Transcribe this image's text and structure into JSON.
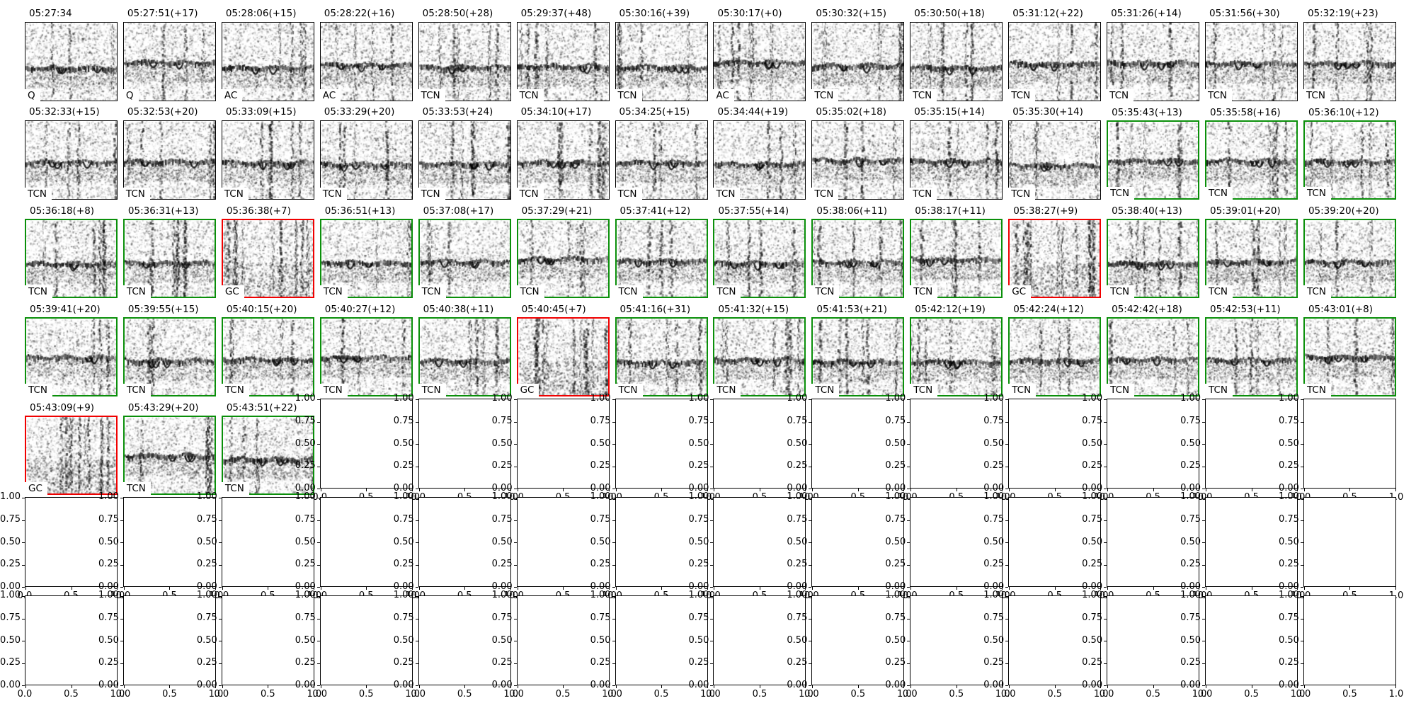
{
  "figure": {
    "background": "#ffffff",
    "border_colors": {
      "black": "#000000",
      "green": "#0a8f0a",
      "red": "#f00000"
    },
    "label_categories": [
      "Q",
      "AC",
      "TCN",
      "GC"
    ]
  },
  "chart_data": {
    "type": "heatmap",
    "title": "",
    "description": "Grid of 59 audio spectrogram panels (time-stamped detections with classifier labels) followed by 39 empty axes",
    "grid": {
      "rows": 7,
      "cols": 14,
      "spectrogram_count": 59,
      "empty_axes_count": 39
    },
    "panels": [
      {
        "title": "05:27:34",
        "label": "Q",
        "border": "black"
      },
      {
        "title": "05:27:51(+17)",
        "label": "Q",
        "border": "black"
      },
      {
        "title": "05:28:06(+15)",
        "label": "AC",
        "border": "black"
      },
      {
        "title": "05:28:22(+16)",
        "label": "AC",
        "border": "black"
      },
      {
        "title": "05:28:50(+28)",
        "label": "TCN",
        "border": "black"
      },
      {
        "title": "05:29:37(+48)",
        "label": "TCN",
        "border": "black"
      },
      {
        "title": "05:30:16(+39)",
        "label": "TCN",
        "border": "black"
      },
      {
        "title": "05:30:17(+0)",
        "label": "AC",
        "border": "black"
      },
      {
        "title": "05:30:32(+15)",
        "label": "TCN",
        "border": "black"
      },
      {
        "title": "05:30:50(+18)",
        "label": "TCN",
        "border": "black"
      },
      {
        "title": "05:31:12(+22)",
        "label": "TCN",
        "border": "black"
      },
      {
        "title": "05:31:26(+14)",
        "label": "TCN",
        "border": "black"
      },
      {
        "title": "05:31:56(+30)",
        "label": "TCN",
        "border": "black"
      },
      {
        "title": "05:32:19(+23)",
        "label": "TCN",
        "border": "black"
      },
      {
        "title": "05:32:33(+15)",
        "label": "TCN",
        "border": "black"
      },
      {
        "title": "05:32:53(+20)",
        "label": "TCN",
        "border": "black"
      },
      {
        "title": "05:33:09(+15)",
        "label": "TCN",
        "border": "black"
      },
      {
        "title": "05:33:29(+20)",
        "label": "TCN",
        "border": "black"
      },
      {
        "title": "05:33:53(+24)",
        "label": "TCN",
        "border": "black"
      },
      {
        "title": "05:34:10(+17)",
        "label": "TCN",
        "border": "black"
      },
      {
        "title": "05:34:25(+15)",
        "label": "TCN",
        "border": "black"
      },
      {
        "title": "05:34:44(+19)",
        "label": "TCN",
        "border": "black"
      },
      {
        "title": "05:35:02(+18)",
        "label": "TCN",
        "border": "black"
      },
      {
        "title": "05:35:15(+14)",
        "label": "TCN",
        "border": "black"
      },
      {
        "title": "05:35:30(+14)",
        "label": "TCN",
        "border": "black"
      },
      {
        "title": "05:35:43(+13)",
        "label": "TCN",
        "border": "green"
      },
      {
        "title": "05:35:58(+16)",
        "label": "TCN",
        "border": "green"
      },
      {
        "title": "05:36:10(+12)",
        "label": "TCN",
        "border": "green"
      },
      {
        "title": "05:36:18(+8)",
        "label": "TCN",
        "border": "green"
      },
      {
        "title": "05:36:31(+13)",
        "label": "TCN",
        "border": "green"
      },
      {
        "title": "05:36:38(+7)",
        "label": "GC",
        "border": "red"
      },
      {
        "title": "05:36:51(+13)",
        "label": "TCN",
        "border": "green"
      },
      {
        "title": "05:37:08(+17)",
        "label": "TCN",
        "border": "green"
      },
      {
        "title": "05:37:29(+21)",
        "label": "TCN",
        "border": "green"
      },
      {
        "title": "05:37:41(+12)",
        "label": "TCN",
        "border": "green"
      },
      {
        "title": "05:37:55(+14)",
        "label": "TCN",
        "border": "green"
      },
      {
        "title": "05:38:06(+11)",
        "label": "TCN",
        "border": "green"
      },
      {
        "title": "05:38:17(+11)",
        "label": "TCN",
        "border": "green"
      },
      {
        "title": "05:38:27(+9)",
        "label": "GC",
        "border": "red"
      },
      {
        "title": "05:38:40(+13)",
        "label": "TCN",
        "border": "green"
      },
      {
        "title": "05:39:01(+20)",
        "label": "TCN",
        "border": "green"
      },
      {
        "title": "05:39:20(+20)",
        "label": "TCN",
        "border": "green"
      },
      {
        "title": "05:39:41(+20)",
        "label": "TCN",
        "border": "green"
      },
      {
        "title": "05:39:55(+15)",
        "label": "TCN",
        "border": "green"
      },
      {
        "title": "05:40:15(+20)",
        "label": "TCN",
        "border": "green"
      },
      {
        "title": "05:40:27(+12)",
        "label": "TCN",
        "border": "green"
      },
      {
        "title": "05:40:38(+11)",
        "label": "TCN",
        "border": "green"
      },
      {
        "title": "05:40:45(+7)",
        "label": "GC",
        "border": "red"
      },
      {
        "title": "05:41:16(+31)",
        "label": "TCN",
        "border": "green"
      },
      {
        "title": "05:41:32(+15)",
        "label": "TCN",
        "border": "green"
      },
      {
        "title": "05:41:53(+21)",
        "label": "TCN",
        "border": "green"
      },
      {
        "title": "05:42:12(+19)",
        "label": "TCN",
        "border": "green"
      },
      {
        "title": "05:42:24(+12)",
        "label": "TCN",
        "border": "green"
      },
      {
        "title": "05:42:42(+18)",
        "label": "TCN",
        "border": "green"
      },
      {
        "title": "05:42:53(+11)",
        "label": "TCN",
        "border": "green"
      },
      {
        "title": "05:43:01(+8)",
        "label": "TCN",
        "border": "green"
      },
      {
        "title": "05:43:09(+9)",
        "label": "GC",
        "border": "red"
      },
      {
        "title": "05:43:29(+20)",
        "label": "TCN",
        "border": "green"
      },
      {
        "title": "05:43:51(+22)",
        "label": "TCN",
        "border": "green"
      }
    ],
    "empty_axes": {
      "count": 39,
      "rows_distribution": {
        "row5": 11,
        "row6": 14,
        "row7": 14
      },
      "ylim": [
        0.0,
        1.0
      ],
      "xlim": [
        0.0,
        1.0
      ],
      "y_tick_labels": [
        "1.00",
        "0.75",
        "0.50",
        "0.25",
        "0.00"
      ],
      "x_tick_labels": [
        "0.0",
        "0.5",
        "1.0"
      ]
    }
  }
}
